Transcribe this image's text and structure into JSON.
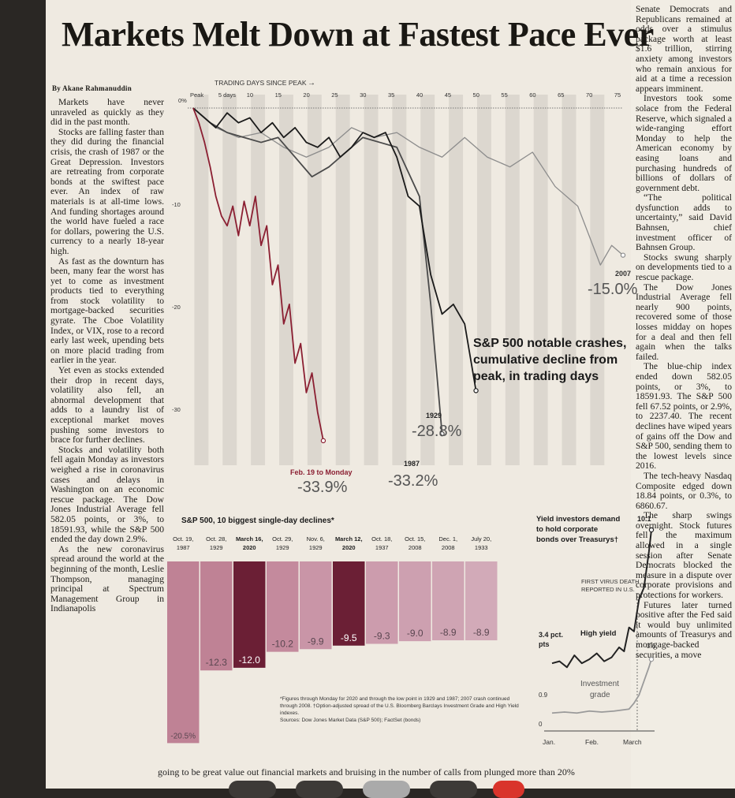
{
  "headline": "Markets Melt Down at Fastest Pace Ever",
  "byline": "By Akane Rahmanuddin",
  "left_column": [
    "Markets have never unraveled as quickly as they did in the past month.",
    "Stocks are falling faster than they did during the financial crisis, the crash of 1987 or the Great Depression. Investors are retreating from corporate bonds at the swiftest pace ever. An index of raw materials is at all-time lows. And funding shortages around the world have fueled a race for dollars, powering the U.S. currency to a nearly 18-year high.",
    "As fast as the downturn has been, many fear the worst has yet to come as investment products tied to everything from stock volatility to mortgage-backed securities gyrate. The Cboe Volatility Index, or VIX, rose to a record early last week, upending bets on more placid trading from earlier in the year.",
    "Yet even as stocks extended their drop in recent days, volatility also fell, an abnormal development that adds to a laundry list of exceptional market moves pushing some investors to brace for further declines.",
    "Stocks and volatility both fell again Monday as investors weighed a rise in coronavirus cases and delays in Washington on an economic rescue package. The Dow Jones Industrial Average fell 582.05 points, or 3%, to 18591.93, while the S&P 500 ended the day down 2.9%.",
    "As the new coronavirus spread around the world at the beginning of the month, Leslie Thompson, managing principal at Spectrum Management Group in Indianapolis"
  ],
  "right_column": [
    "Senate Democrats and Republicans remained at odds over a stimulus package worth at least $1.6 trillion, stirring anxiety among investors who remain anxious for aid at a time a recession appears imminent.",
    "Investors took some solace from the Federal Reserve, which signaled a wide-ranging effort Monday to help the American economy by easing loans and purchasing hundreds of billions of dollars of government debt.",
    "“The political dysfunction adds to uncertainty,” said David Bahnsen, chief investment officer of Bahnsen Group.",
    "Stocks swung sharply on developments tied to a rescue package.",
    "The Dow Jones Industrial Average fell nearly 900 points, recovered some of those losses midday on hopes for a deal and then fell again when the talks failed.",
    "The blue-chip index ended down 582.05 points, or 3%, to 18591.93. The S&P 500 fell 67.52 points, or 2.9%, to 2237.40. The recent declines have wiped years of gains off the Dow and S&P 500, sending them to the lowest levels since 2016.",
    "The tech-heavy Nasdaq Composite edged down 18.84 points, or 0.3%, to 6860.67.",
    "The sharp swings overnight. Stock futures fell the maximum allowed in a single session after Senate Democrats blocked the measure in a dispute over corporate provisions and protections for workers.",
    "Futures later turned positive after the Fed said it would buy unlimited amounts of Treasurys and mortgage-backed securities, a move"
  ],
  "bottom_strip": "going to be great value out   financial markets and bruising   in the number of calls from   plunged more than 20%",
  "main_chart": {
    "top_label": "TRADING DAYS SINCE PEAK",
    "arrow": "→",
    "x_ticks": [
      "Peak",
      "5 days",
      "10",
      "15",
      "20",
      "25",
      "30",
      "35",
      "40",
      "45",
      "50",
      "55",
      "60",
      "65",
      "70",
      "75"
    ],
    "y_ticks": [
      "0%",
      "-10",
      "-20",
      "-30"
    ],
    "title_lines": [
      "S&P 500 notable crashes,",
      "cumulative decline from",
      "peak, in trading days"
    ],
    "labels": {
      "y2007": "2007",
      "v2007": "-15.0%",
      "y1929": "1929",
      "v1929": "-28.8%",
      "y1987": "1987",
      "v1987": "-33.2%",
      "y2020": "Feb. 19 to Monday",
      "v2020": "-33.9%"
    }
  },
  "chart_data": [
    {
      "type": "line",
      "title": "S&P 500 notable crashes, cumulative decline from peak, in trading days",
      "xlabel": "TRADING DAYS SINCE PEAK",
      "ylabel": "",
      "xlim": [
        0,
        76
      ],
      "ylim": [
        -36,
        0
      ],
      "series": [
        {
          "name": "Feb. 19 to Monday",
          "color": "#8b1f32",
          "x": [
            0,
            1,
            2,
            3,
            4,
            5,
            6,
            7,
            8,
            9,
            10,
            11,
            12,
            13,
            14,
            15,
            16,
            17,
            18,
            19,
            20,
            21,
            22,
            23
          ],
          "y": [
            0,
            -1.5,
            -3.5,
            -6,
            -9,
            -11,
            -12,
            -10,
            -13,
            -9.5,
            -12,
            -9,
            -14,
            -12,
            -18,
            -16,
            -22,
            -20,
            -26,
            -24,
            -29,
            -27,
            -31,
            -33.9
          ]
        },
        {
          "name": "1929",
          "color": "#1a1a1a",
          "x": [
            0,
            2,
            4,
            6,
            8,
            10,
            12,
            14,
            16,
            18,
            20,
            22,
            24,
            26,
            28,
            30,
            32,
            34,
            36,
            38,
            40,
            42,
            44,
            46,
            48,
            50
          ],
          "y": [
            0,
            -1,
            -2,
            -0.5,
            -1.5,
            -1,
            -2.5,
            -1.5,
            -3,
            -2,
            -3.5,
            -4,
            -3,
            -5,
            -4,
            -2.5,
            -3,
            -2.5,
            -5,
            -9,
            -10,
            -17,
            -21,
            -20,
            -22,
            -28.8
          ]
        },
        {
          "name": "1987",
          "color": "#4a4a4a",
          "x": [
            0,
            3,
            6,
            9,
            12,
            15,
            18,
            21,
            24,
            27,
            30,
            33,
            36,
            38,
            40,
            42,
            44
          ],
          "y": [
            0,
            -1.5,
            -2.5,
            -3,
            -3.5,
            -3,
            -5,
            -7,
            -6,
            -4.5,
            -3,
            -3.5,
            -4,
            -6.5,
            -9,
            -20,
            -33.2
          ]
        },
        {
          "name": "2007",
          "color": "#8c8c8c",
          "x": [
            0,
            4,
            8,
            12,
            16,
            20,
            24,
            28,
            32,
            36,
            40,
            44,
            48,
            52,
            56,
            60,
            64,
            68,
            70,
            72,
            74,
            76
          ],
          "y": [
            0,
            -2,
            -3,
            -2.5,
            -4,
            -5,
            -4,
            -2,
            -3,
            -2.5,
            -4,
            -5,
            -3,
            -5,
            -6,
            -4.5,
            -8,
            -10,
            -13,
            -16,
            -14,
            -15
          ]
        }
      ],
      "end_labels": [
        {
          "series": "2007",
          "value": "-15.0%"
        },
        {
          "series": "1929",
          "value": "-28.8%"
        },
        {
          "series": "1987",
          "value": "-33.2%"
        },
        {
          "series": "Feb. 19 to Monday",
          "value": "-33.9%"
        }
      ]
    },
    {
      "type": "bar",
      "title": "S&P 500, 10 biggest single-day declines*",
      "categories": [
        {
          "line1": "Oct. 19,",
          "line2": "1987",
          "bold": false
        },
        {
          "line1": "Oct. 28,",
          "line2": "1929",
          "bold": false
        },
        {
          "line1": "March 16,",
          "line2": "2020",
          "bold": true
        },
        {
          "line1": "Oct. 29,",
          "line2": "1929",
          "bold": false
        },
        {
          "line1": "Nov. 6,",
          "line2": "1929",
          "bold": false
        },
        {
          "line1": "March 12,",
          "line2": "2020",
          "bold": true
        },
        {
          "line1": "Oct. 18,",
          "line2": "1937",
          "bold": false
        },
        {
          "line1": "Oct. 15,",
          "line2": "2008",
          "bold": false
        },
        {
          "line1": "Dec. 1,",
          "line2": "2008",
          "bold": false
        },
        {
          "line1": "July 20,",
          "line2": "1933",
          "bold": false
        }
      ],
      "values": [
        -20.5,
        -12.3,
        -12.0,
        -10.2,
        -9.9,
        -9.5,
        -9.3,
        -9.0,
        -8.9,
        -8.9
      ],
      "value_labels": [
        "-20.5%",
        "-12.3",
        "-12.0",
        "-10.2",
        "-9.9",
        "-9.5",
        "-9.3",
        "-9.0",
        "-8.9",
        "-8.9"
      ],
      "colors": [
        "#bf8295",
        "#bf8295",
        "#6b1f35",
        "#c48a9d",
        "#c995a7",
        "#6b1f35",
        "#cc9cad",
        "#cda0b0",
        "#cfa4b3",
        "#d2aab8"
      ],
      "ylim": [
        -21,
        0
      ]
    },
    {
      "type": "line",
      "title": "Yield investors demand to hold corporate bonds over Treasurys†",
      "x_ticks": [
        "Jan.",
        "Feb.",
        "March"
      ],
      "y_ticks": [
        "0.9",
        "0"
      ],
      "annotation": "FIRST VIRUS DEATH REPORTED IN U.S.",
      "series": [
        {
          "name": "High yield",
          "color": "#222222",
          "start_label": "3.4 pct. pts",
          "end_label": "10.1",
          "x": [
            0,
            6,
            12,
            18,
            24,
            30,
            36,
            42,
            48,
            54,
            58,
            62,
            66,
            70,
            74,
            78,
            80
          ],
          "y": [
            3.4,
            3.5,
            3.2,
            3.8,
            3.4,
            3.6,
            3.9,
            3.5,
            3.7,
            4.2,
            4.0,
            5.2,
            5.0,
            6.6,
            7.2,
            9.0,
            10.1
          ]
        },
        {
          "name": "Investment grade",
          "color": "#9a9a9a",
          "start_label": "0.9",
          "end_label": "3.6",
          "x": [
            0,
            10,
            20,
            30,
            40,
            50,
            56,
            62,
            66,
            70,
            74,
            78,
            80
          ],
          "y": [
            0.9,
            0.95,
            0.9,
            1.0,
            0.95,
            1.0,
            1.05,
            1.1,
            1.4,
            1.8,
            2.5,
            3.2,
            3.6
          ]
        }
      ]
    }
  ],
  "notes": {
    "line1": "*Figures through Monday for 2020 and through the low point in 1929 and 1987; 2007 crash continued through 2008.  †Option-adjusted spread of the U.S. Bloomberg Barclays Investment Grade and High Yield indexes.",
    "source": "Sources: Dow Jones Market Data (S&P 500); FactSet (bonds)"
  }
}
